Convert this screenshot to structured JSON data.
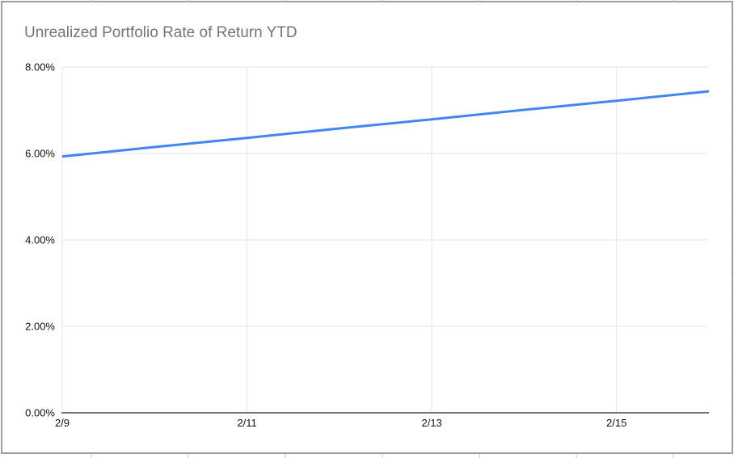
{
  "window": {
    "background": "#ffffff",
    "chart_border_color": "#9e9e9e"
  },
  "chart_data": {
    "type": "line",
    "title": "Unrealized Portfolio Rate of Return YTD",
    "x": [
      "2/9",
      "2/10",
      "2/11",
      "2/12",
      "2/13",
      "2/14",
      "2/15",
      "2/16"
    ],
    "series": [
      {
        "values_percent": [
          5.93,
          6.15,
          6.36,
          6.58,
          6.79,
          7.01,
          7.22,
          7.44
        ]
      }
    ],
    "xlabel": "",
    "ylabel": "",
    "x_tick_labels": [
      "2/9",
      "2/11",
      "2/13",
      "2/15"
    ],
    "x_tick_day_indices": [
      0,
      2,
      4,
      6
    ],
    "x_range_days": [
      0,
      7
    ],
    "y_tick_labels": [
      "0.00%",
      "2.00%",
      "4.00%",
      "6.00%",
      "8.00%"
    ],
    "y_tick_values_percent": [
      0,
      2,
      4,
      6,
      8
    ],
    "ylim_percent": [
      0,
      8
    ],
    "grid": true,
    "legend_position": "none",
    "colors": {
      "line": "#4285f4",
      "gridline": "#e6e6e6",
      "axis_baseline": "#757575",
      "tick_label": "#111111",
      "title": "#757575",
      "spreadsheet_tick": "#bdbdbd"
    }
  }
}
